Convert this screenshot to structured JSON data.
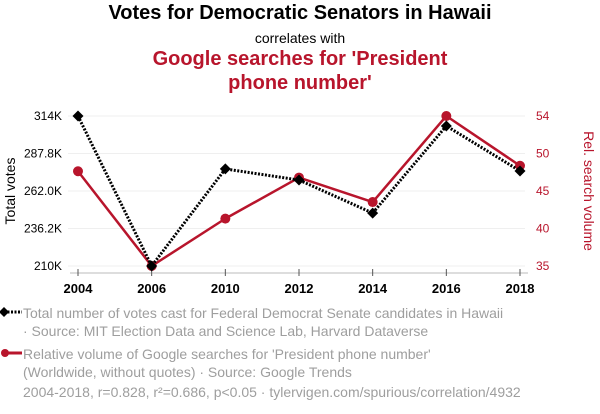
{
  "header": {
    "title": "Votes for Democratic Senators in Hawaii",
    "subtitle": "correlates with",
    "title2_line1": "Google searches for 'President",
    "title2_line2": "phone number'"
  },
  "chart_data": {
    "type": "line",
    "title": "Votes for Democratic Senators in Hawaii correlates with Google searches for 'President phone number'",
    "x": [
      "2004",
      "2006",
      "2010",
      "2012",
      "2014",
      "2016",
      "2018"
    ],
    "series": [
      {
        "name": "Total number of votes cast for Federal Democrat Senate candidates in Hawaii",
        "axis": "left",
        "color": "#000000",
        "style": "dotted",
        "marker": "diamond",
        "values": [
          314000,
          210000,
          277300,
          269600,
          246700,
          307100,
          275900
        ]
      },
      {
        "name": "Relative volume of Google searches for 'President phone number'",
        "axis": "right",
        "color": "#b8152c",
        "style": "solid",
        "marker": "circle",
        "values": [
          47,
          35,
          41,
          46.2,
          43.1,
          54,
          47.7
        ]
      }
    ],
    "ylabel_left": "Total votes",
    "ylabel_right": "Rel. search volume",
    "ylim_left": [
      210000,
      314000
    ],
    "ylim_right": [
      35,
      54
    ],
    "yticks_left": [
      "314K",
      "287.8K",
      "262.0K",
      "236.2K",
      "210K"
    ],
    "yticks_right": [
      "54",
      "50",
      "45",
      "40",
      "35"
    ],
    "grid": true
  },
  "legend": {
    "item1_line1": "Total number of votes cast for Federal Democrat Senate candidates in Hawaii",
    "item1_line2": "· Source: MIT Election Data and Science Lab, Harvard Dataverse",
    "item2_line1": "Relative volume of Google searches for 'President phone number'",
    "item2_line2": "(Worldwide, without quotes) · Source: Google Trends"
  },
  "footer": "2004-2018, r=0.828, r²=0.686, p<0.05 · tylervigen.com/spurious/correlation/4932",
  "colors": {
    "accent": "#b8152c",
    "muted": "#9e9e9e"
  }
}
